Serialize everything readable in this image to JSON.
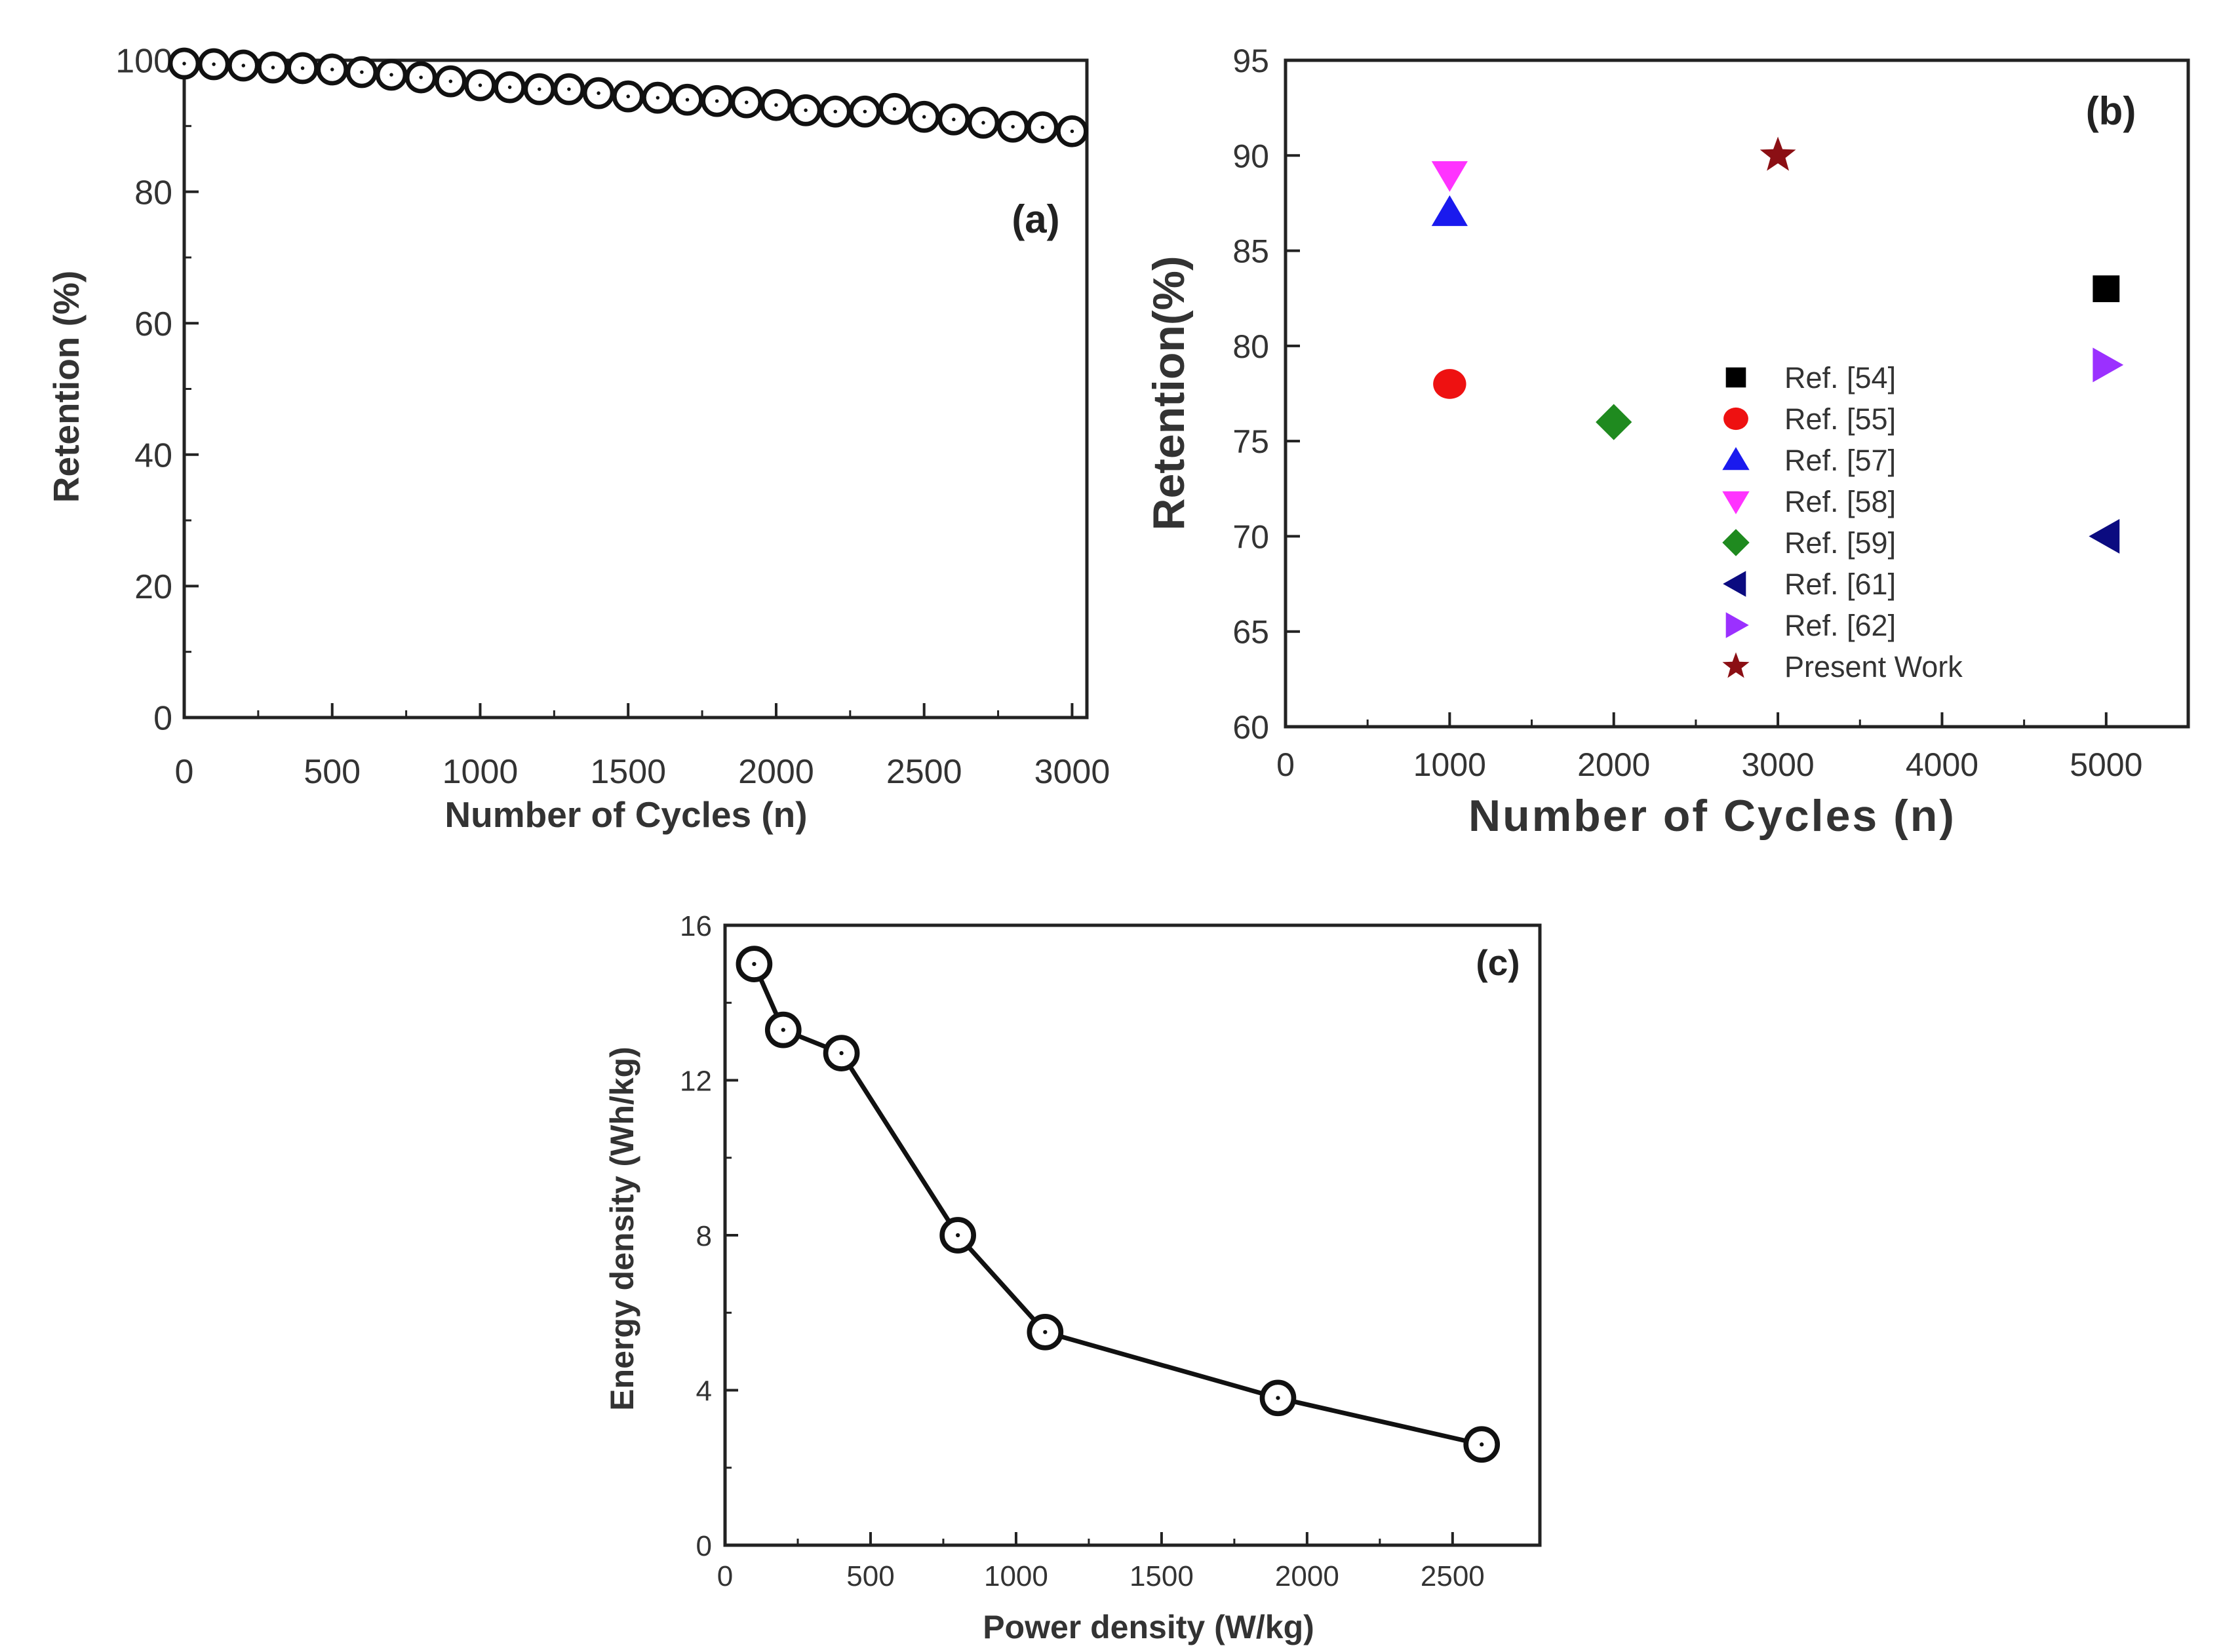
{
  "chart_data": [
    {
      "panel": "(a)",
      "type": "line",
      "xlabel": "Number of Cycles (n)",
      "ylabel": "Retention (%)",
      "xlim": [
        0,
        3050
      ],
      "ylim": [
        0,
        100
      ],
      "xticks": [
        0,
        500,
        1000,
        1500,
        2000,
        2500,
        3000
      ],
      "yticks": [
        0,
        20,
        40,
        60,
        80,
        100
      ],
      "xtick_labels": [
        "0",
        "500",
        "1000",
        "1500",
        "2000",
        "2500",
        "3000"
      ],
      "ytick_labels": [
        "0",
        "20",
        "40",
        "60",
        "80",
        "100"
      ],
      "marker": "open-circle-dot",
      "x": [
        0,
        100,
        200,
        300,
        400,
        500,
        600,
        700,
        800,
        900,
        1000,
        1100,
        1200,
        1300,
        1400,
        1500,
        1600,
        1700,
        1800,
        1900,
        2000,
        2100,
        2200,
        2300,
        2400,
        2500,
        2600,
        2700,
        2800,
        2900,
        3000
      ],
      "y": [
        99.5,
        99.4,
        99.2,
        98.9,
        98.8,
        98.6,
        98.2,
        97.8,
        97.4,
        96.8,
        96.2,
        95.9,
        95.6,
        95.6,
        95.0,
        94.5,
        94.3,
        94.0,
        93.8,
        93.6,
        93.2,
        92.4,
        92.2,
        92.2,
        92.6,
        91.4,
        91.0,
        90.5,
        89.9,
        89.8,
        89.2
      ]
    },
    {
      "panel": "(b)",
      "type": "scatter",
      "xlabel": "Number of Cycles (n)",
      "ylabel": "Retention(%)",
      "xlim": [
        0,
        5500
      ],
      "ylim": [
        60,
        95
      ],
      "xticks": [
        0,
        1000,
        2000,
        3000,
        4000,
        5000
      ],
      "yticks": [
        60,
        65,
        70,
        75,
        80,
        85,
        90,
        95
      ],
      "xtick_labels": [
        "0",
        "1000",
        "2000",
        "3000",
        "4000",
        "5000"
      ],
      "ytick_labels": [
        "60",
        "65",
        "70",
        "75",
        "80",
        "85",
        "90",
        "95"
      ],
      "legend_position": "right-center",
      "series": [
        {
          "name": "Ref. [54]",
          "marker": "square",
          "color": "#000000",
          "x": [
            5000
          ],
          "y": [
            83
          ]
        },
        {
          "name": "Ref. [55]",
          "marker": "circle",
          "color": "#ee1111",
          "x": [
            1000
          ],
          "y": [
            78
          ]
        },
        {
          "name": "Ref. [57]",
          "marker": "triangle-up",
          "color": "#1a1aee",
          "x": [
            1000
          ],
          "y": [
            87
          ]
        },
        {
          "name": "Ref. [58]",
          "marker": "triangle-down",
          "color": "#ff33ff",
          "x": [
            1000
          ],
          "y": [
            89
          ]
        },
        {
          "name": "Ref. [59]",
          "marker": "diamond",
          "color": "#1f8a1f",
          "x": [
            2000
          ],
          "y": [
            76
          ]
        },
        {
          "name": "Ref. [61]",
          "marker": "triangle-left",
          "color": "#0b0b80",
          "x": [
            5000
          ],
          "y": [
            70
          ]
        },
        {
          "name": "Ref. [62]",
          "marker": "triangle-right",
          "color": "#9b30ff",
          "x": [
            5000
          ],
          "y": [
            79
          ]
        },
        {
          "name": "Present Work",
          "marker": "star",
          "color": "#8b0f14",
          "x": [
            3000
          ],
          "y": [
            90
          ]
        }
      ]
    },
    {
      "panel": "(c)",
      "type": "line",
      "xlabel": "Power density (W/kg)",
      "ylabel": "Energy density (Wh/kg)",
      "xlim": [
        0,
        2800
      ],
      "ylim": [
        0,
        16
      ],
      "xticks": [
        0,
        500,
        1000,
        1500,
        2000,
        2500
      ],
      "yticks": [
        0,
        4,
        8,
        12,
        16
      ],
      "xtick_labels": [
        "0",
        "500",
        "1000",
        "1500",
        "2000",
        "2500"
      ],
      "ytick_labels": [
        "0",
        "4",
        "8",
        "12",
        "16"
      ],
      "marker": "open-circle-dot",
      "x": [
        100,
        200,
        400,
        800,
        1100,
        1900,
        2600
      ],
      "y": [
        15.0,
        13.3,
        12.7,
        8.0,
        5.5,
        3.8,
        2.6
      ]
    }
  ]
}
